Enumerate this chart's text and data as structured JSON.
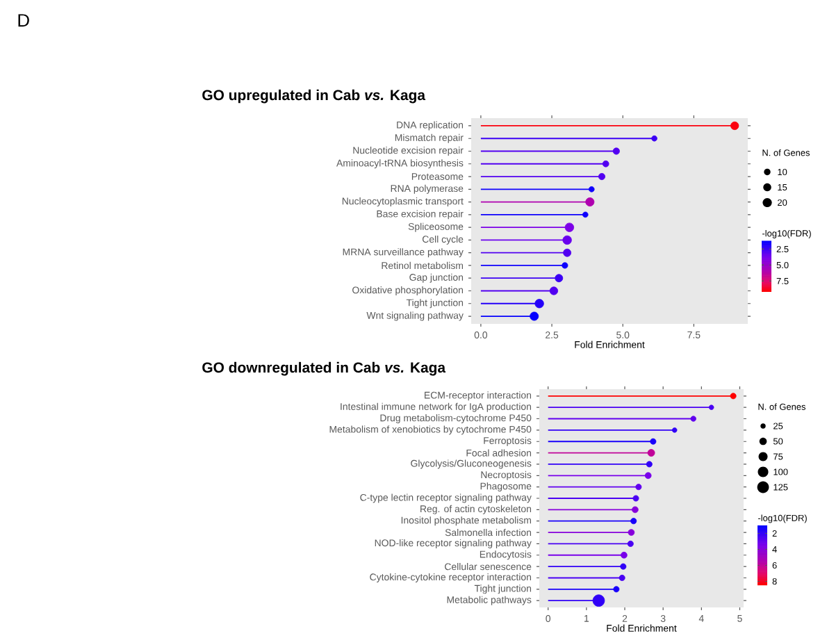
{
  "chart_data": [
    {
      "type": "lollipop",
      "orientation": "horizontal",
      "title": "GO upregulated in Cab *vs.* Kaga",
      "annotations": [
        "D"
      ],
      "categories": [
        "DNA replication",
        "Mismatch repair",
        "Nucleotide excision repair",
        "Aminoacyl-tRNA biosynthesis",
        "Proteasome",
        "RNA polymerase",
        "Nucleocytoplasmic transport",
        "Base excision repair",
        "Spliceosome",
        "Cell cycle",
        "MRNA surveillance pathway",
        "Retinol metabolism",
        "Gap junction",
        "Oxidative phosphorylation",
        "Tight junction",
        "Wnt signaling pathway"
      ],
      "values": [
        8.94,
        6.11,
        4.77,
        4.4,
        4.26,
        3.9,
        3.84,
        3.68,
        3.12,
        3.04,
        3.04,
        2.96,
        2.75,
        2.57,
        2.06,
        1.88
      ],
      "sizes": [
        15,
        7,
        10,
        9,
        10,
        7,
        17,
        7,
        18,
        18,
        14,
        8,
        14,
        15,
        18,
        17
      ],
      "cvalues": [
        9,
        2.5,
        3,
        3,
        3,
        1.5,
        6,
        1.5,
        4,
        3.5,
        3,
        1.5,
        2.5,
        3,
        2,
        1.3
      ],
      "clim": [
        1.2,
        9.2
      ],
      "cticks": [
        {
          "value": 2.5,
          "label": "2.5"
        },
        {
          "value": 5,
          "label": "5.0"
        },
        {
          "value": 7.5,
          "label": "7.5"
        }
      ],
      "clabel": "-log10(FDR)",
      "legend_title": "N. of Genes",
      "size_legend": [
        10,
        15,
        20
      ],
      "xlabel": "Fold Enrichment",
      "xlim": [
        -0.34,
        9.4
      ],
      "xticks": [
        {
          "value": 0,
          "label": "0.0"
        },
        {
          "value": 2.5,
          "label": "2.5"
        },
        {
          "value": 5,
          "label": "5.0"
        },
        {
          "value": 7.5,
          "label": "7.5"
        }
      ]
    },
    {
      "type": "lollipop",
      "orientation": "horizontal",
      "title": "GO downregulated in Cab *vs.* Kaga",
      "categories": [
        "ECM-receptor interaction",
        "Intestinal immune network for IgA production",
        "Drug metabolism-cytochrome P450",
        "Metabolism of xenobiotics by cytochrome P450",
        "Ferroptosis",
        "Focal adhesion",
        "Glycolysis/Gluconeogenesis",
        "Necroptosis",
        "Phagosome",
        "C-type lectin receptor signaling pathway",
        "Reg. of actin cytoskeleton",
        "Inositol phosphate metabolism",
        "Salmonella infection",
        "NOD-like receptor signaling pathway",
        "Endocytosis",
        "Cellular senescence",
        "Cytokine-cytokine receptor interaction",
        "Tight junction",
        "Metabolic pathways"
      ],
      "values": [
        4.83,
        4.26,
        3.79,
        3.3,
        2.74,
        2.69,
        2.64,
        2.61,
        2.36,
        2.29,
        2.27,
        2.23,
        2.17,
        2.15,
        1.98,
        1.96,
        1.93,
        1.78,
        1.32
      ],
      "sizes": [
        30,
        20,
        25,
        20,
        30,
        45,
        30,
        35,
        30,
        30,
        35,
        30,
        35,
        30,
        35,
        30,
        30,
        30,
        125
      ],
      "cvalues": [
        8.5,
        2.5,
        3,
        2,
        1.5,
        6,
        2,
        3.5,
        3,
        2.5,
        4,
        1.5,
        4,
        2.5,
        3.5,
        2,
        2.5,
        1.5,
        2
      ],
      "clim": [
        1,
        8.5
      ],
      "cticks": [
        2,
        4,
        6,
        8
      ],
      "clabel": "-log10(FDR)",
      "legend_title": "N. of Genes",
      "size_legend": [
        25,
        50,
        75,
        100,
        125
      ],
      "xlabel": "Fold Enrichment",
      "xlim": [
        -0.23,
        5.1
      ],
      "xticks": [
        0,
        1,
        2,
        3,
        4,
        5
      ]
    }
  ]
}
